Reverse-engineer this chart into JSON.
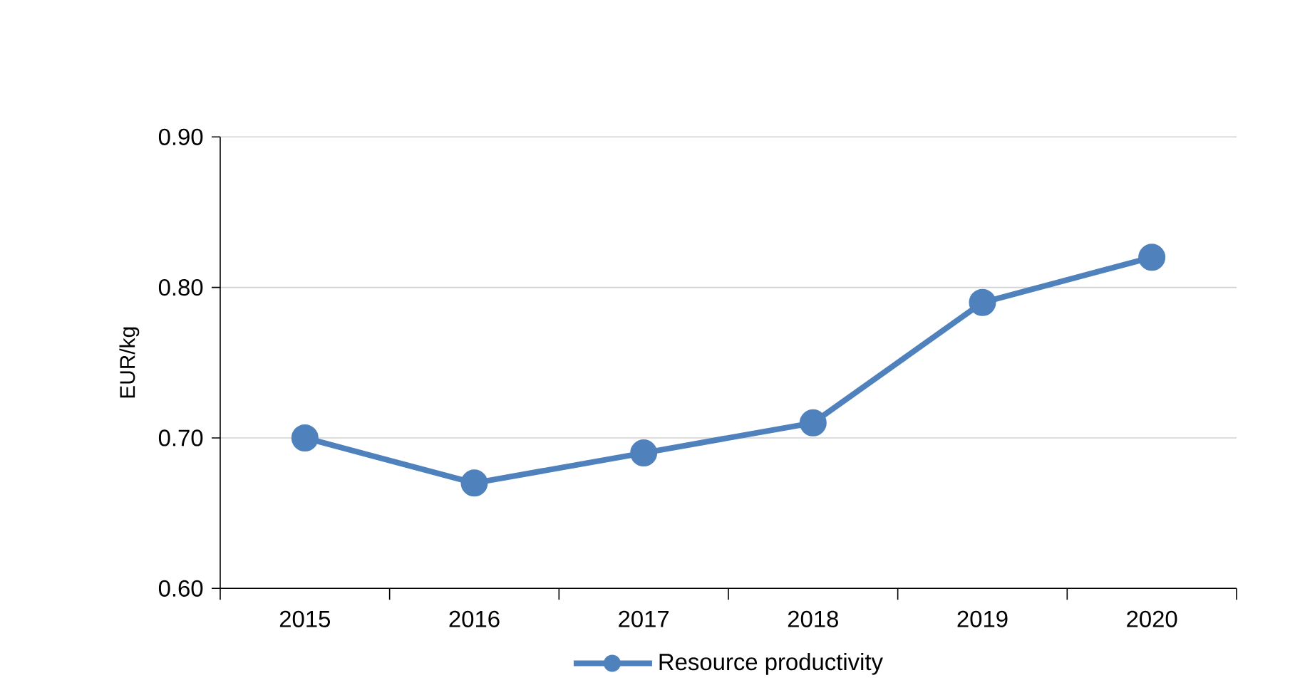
{
  "chart_data": {
    "type": "line",
    "ylabel": "EUR/kg",
    "categories": [
      "2015",
      "2016",
      "2017",
      "2018",
      "2019",
      "2020"
    ],
    "series": [
      {
        "name": "Resource productivity",
        "color": "#4f81bd",
        "values": [
          0.7,
          0.67,
          0.69,
          0.71,
          0.79,
          0.82
        ]
      }
    ],
    "ylim": [
      0.6,
      0.9
    ],
    "yticks": [
      {
        "value": 0.6,
        "label": "0.60"
      },
      {
        "value": 0.7,
        "label": "0.70"
      },
      {
        "value": 0.8,
        "label": "0.80"
      },
      {
        "value": 0.9,
        "label": "0.90"
      }
    ],
    "grid": "y",
    "legend": "bottom",
    "marker": "circle",
    "line_style": "solid"
  }
}
